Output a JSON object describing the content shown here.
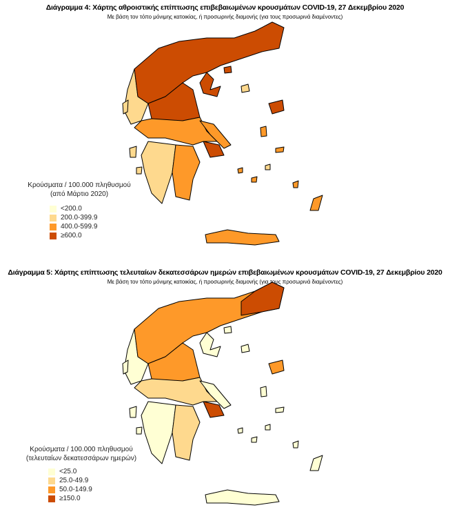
{
  "diagram4": {
    "title": "Διάγραμμα 4: Χάρτης αθροιστικής επίπτωσης επιβεβαιωμένων κρουσμάτων COVID-19, 27 Δεκεμβρίου 2020",
    "subtitle": "Με βάση τον τόπο μόνιμης κατοικίας, ή προσωρινής διαμονής (για τους προσωρινά διαμένοντες)",
    "legend": {
      "title_line1": "Κρούσματα / 100.000 πληθυσμού",
      "title_line2": "(από Μάρτιο 2020)",
      "items": [
        {
          "label": "<200.0",
          "color": "#FFFFD4"
        },
        {
          "label": "200.0-399.9",
          "color": "#FED98E"
        },
        {
          "label": "400.0-599.9",
          "color": "#FE9929"
        },
        {
          "label": "≥600.0",
          "color": "#CC4C02"
        }
      ]
    }
  },
  "diagram5": {
    "title": "Διάγραμμα 5: Χάρτης επίπτωσης τελευταίων δεκατεσσάρων ημερών επιβεβαιωμένων κρουσμάτων COVID-19, 27 Δεκεμβρίου 2020",
    "subtitle": "Με βάση τον τόπο μόνιμης κατοικίας, ή προσωρινής διαμονής (για τους προσωρινά διαμένοντες)",
    "legend": {
      "title_line1": "Κρούσματα / 100.000 πληθυσμού",
      "title_line2": "(τελευταίων δεκατεσσάρων ημερών)",
      "items": [
        {
          "label": "<25.0",
          "color": "#FFFFD4"
        },
        {
          "label": "25.0-49.9",
          "color": "#FED98E"
        },
        {
          "label": "50.0-149.9",
          "color": "#FE9929"
        },
        {
          "label": "≥150.0",
          "color": "#CC4C02"
        }
      ]
    }
  }
}
